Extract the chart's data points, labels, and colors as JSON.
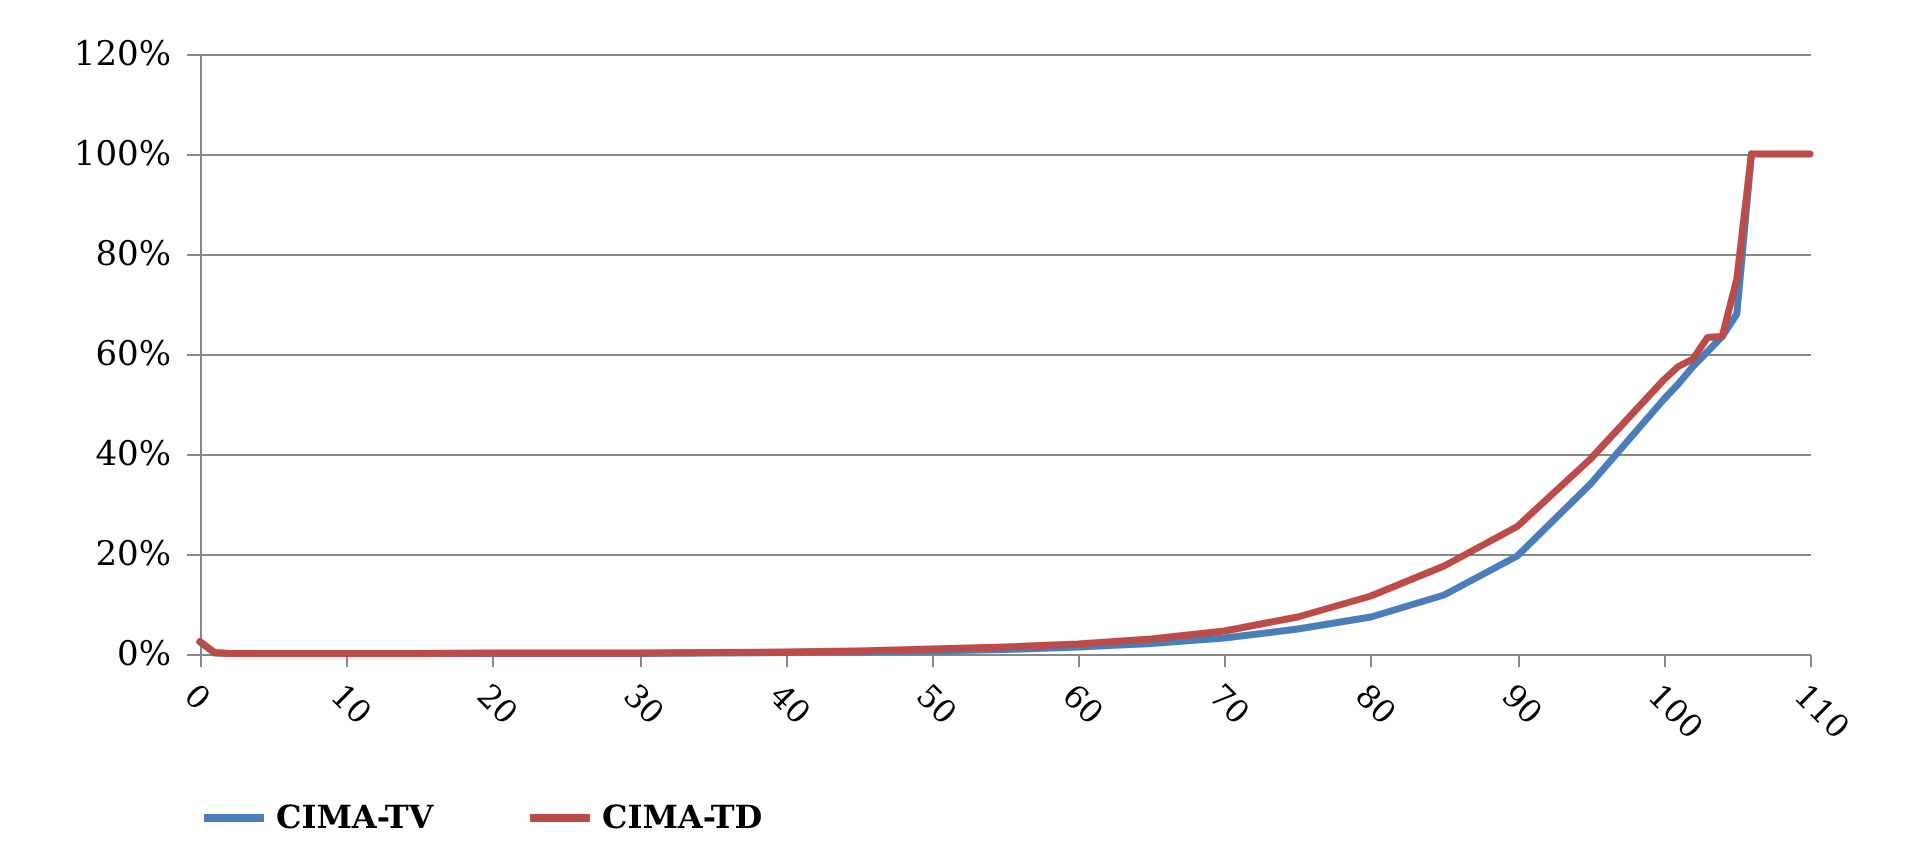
{
  "chart_data": {
    "type": "line",
    "x": [
      0,
      1,
      2,
      5,
      10,
      15,
      20,
      25,
      30,
      35,
      40,
      45,
      50,
      55,
      60,
      65,
      70,
      75,
      80,
      85,
      90,
      95,
      100,
      101,
      102,
      103,
      104,
      105,
      106,
      107,
      108,
      109,
      110
    ],
    "series": [
      {
        "name": "CIMA-TV",
        "color": "#4a7ebb",
        "values": [
          2.4,
          0.2,
          0.1,
          null,
          0.1,
          null,
          0.1,
          0.1,
          0.1,
          0.2,
          0.3,
          0.4,
          0.6,
          0.9,
          1.4,
          2.1,
          3.2,
          5,
          7.4,
          11.8,
          19.6,
          34,
          50.9,
          54,
          57.5,
          60.5,
          63.5,
          68,
          100,
          null,
          null,
          null,
          null
        ]
      },
      {
        "name": "CIMA-TD",
        "color": "#be4b48",
        "values": [
          2.5,
          0.3,
          0.1,
          0.1,
          0.1,
          0.1,
          0.2,
          0.2,
          0.2,
          0.3,
          0.4,
          0.6,
          1,
          1.4,
          2,
          3,
          4.6,
          7.4,
          11.6,
          17.6,
          25.5,
          39,
          54.8,
          57.5,
          59,
          63.3,
          63.5,
          75,
          100,
          100,
          100,
          100,
          100
        ]
      }
    ],
    "xlim": [
      0,
      110
    ],
    "xticks": [
      0,
      10,
      20,
      30,
      40,
      50,
      60,
      70,
      80,
      90,
      100,
      110
    ],
    "ylim": [
      0,
      120
    ],
    "yticks": [
      {
        "value": 0,
        "label": "0%"
      },
      {
        "value": 20,
        "label": "20%"
      },
      {
        "value": 40,
        "label": "40%"
      },
      {
        "value": 60,
        "label": "60%"
      },
      {
        "value": 80,
        "label": "80%"
      },
      {
        "value": 100,
        "label": "100%"
      },
      {
        "value": 120,
        "label": "120%"
      }
    ],
    "grid": "y",
    "legend": "bottom",
    "line_style": "solid"
  }
}
